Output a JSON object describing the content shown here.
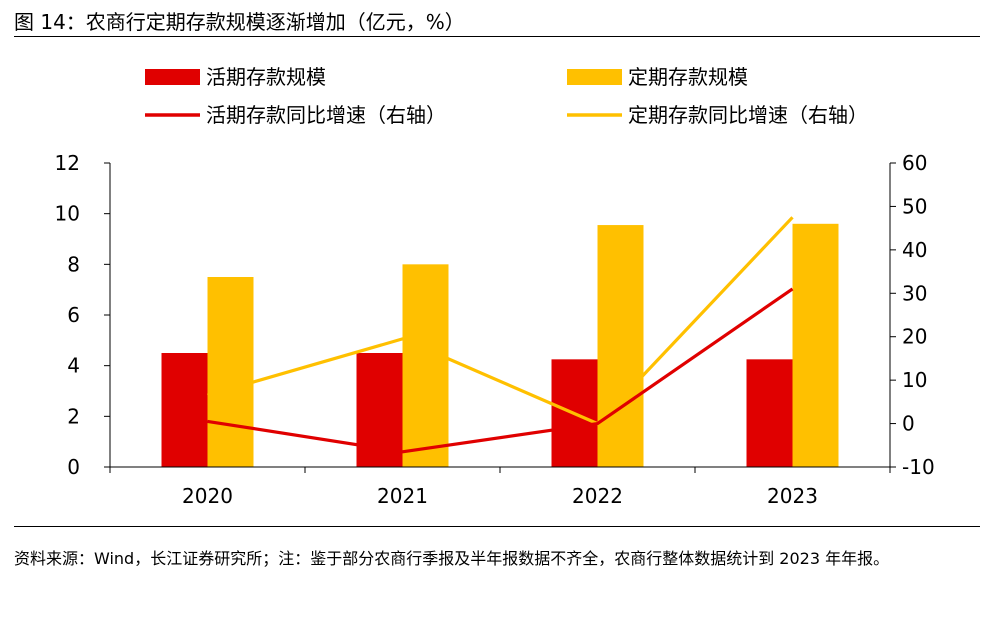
{
  "figure": {
    "title": "图 14：农商行定期存款规模逐渐增加（亿元，%）",
    "source": "资料来源：Wind，长江证券研究所；注：鉴于部分农商行季报及半年报数据不齐全，农商行整体数据统计到 2023 年年报。"
  },
  "chart_data": {
    "type": "bar",
    "categories": [
      "2020",
      "2021",
      "2022",
      "2023"
    ],
    "series": [
      {
        "name": "活期存款规模",
        "kind": "bar",
        "axis": "left",
        "color": "#e00000",
        "values": [
          4.5,
          4.5,
          4.25,
          4.25
        ]
      },
      {
        "name": "定期存款规模",
        "kind": "bar",
        "axis": "left",
        "color": "#ffc000",
        "values": [
          7.5,
          8.0,
          9.55,
          9.6
        ]
      },
      {
        "name": "活期存款同比增速（右轴）",
        "kind": "line",
        "axis": "right",
        "color": "#e00000",
        "values": [
          0.5,
          -6.5,
          0,
          31
        ]
      },
      {
        "name": "定期存款同比增速（右轴）",
        "kind": "line",
        "axis": "right",
        "color": "#ffc000",
        "values": [
          6.5,
          19.5,
          0,
          47.5
        ]
      }
    ],
    "y_left": {
      "min": 0,
      "max": 12,
      "ticks": [
        "0",
        "2",
        "4",
        "6",
        "8",
        "10",
        "12"
      ]
    },
    "y_right": {
      "min": -10,
      "max": 60,
      "ticks": [
        "-10",
        "0",
        "10",
        "20",
        "30",
        "40",
        "50",
        "60"
      ]
    },
    "legend": "top",
    "grid": false
  }
}
